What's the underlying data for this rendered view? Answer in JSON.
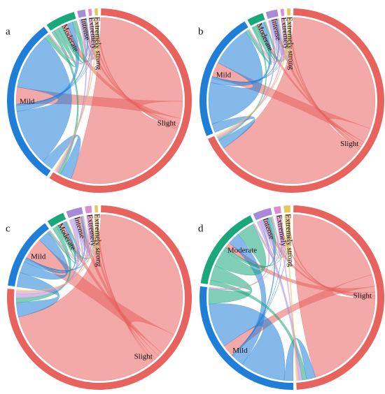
{
  "chart_data": [
    {
      "type": "chord",
      "label": "a",
      "categories": [
        "Slight",
        "Mild",
        "Moderate",
        "Intense",
        "Extremely",
        "Extremely strong"
      ],
      "colors": [
        "#e8625e",
        "#1f7fd8",
        "#1aa77a",
        "#a78bd8",
        "#e08bd0",
        "#e6c85a"
      ],
      "matrix": [
        [
          90,
          12,
          4,
          2,
          1,
          1
        ],
        [
          8,
          40,
          4,
          1,
          0,
          0
        ],
        [
          2,
          3,
          3,
          0,
          0,
          0
        ],
        [
          1,
          1,
          0,
          0,
          0,
          0
        ],
        [
          1,
          0,
          0,
          0,
          0,
          0
        ],
        [
          1,
          0,
          0,
          0,
          0,
          0
        ]
      ]
    },
    {
      "type": "chord",
      "label": "b",
      "categories": [
        "Slight",
        "Mild",
        "Moderate",
        "Intense",
        "Extremely",
        "Extremely strong"
      ],
      "colors": [
        "#e8625e",
        "#1f7fd8",
        "#1aa77a",
        "#a78bd8",
        "#e08bd0",
        "#e6c85a"
      ],
      "matrix": [
        [
          105,
          10,
          2,
          2,
          1,
          1
        ],
        [
          6,
          28,
          3,
          1,
          0,
          0
        ],
        [
          1,
          2,
          1,
          0,
          0,
          0
        ],
        [
          1,
          1,
          0,
          1,
          0,
          0
        ],
        [
          1,
          0,
          0,
          0,
          0,
          0
        ],
        [
          1,
          0,
          0,
          0,
          0,
          0
        ]
      ]
    },
    {
      "type": "chord",
      "label": "c",
      "categories": [
        "Slight",
        "Mild",
        "Moderate",
        "Intense",
        "Extremely",
        "Extremely strong"
      ],
      "colors": [
        "#e8625e",
        "#1f7fd8",
        "#1aa77a",
        "#a78bd8",
        "#e08bd0",
        "#e6c85a"
      ],
      "matrix": [
        [
          115,
          15,
          3,
          3,
          2,
          1
        ],
        [
          10,
          8,
          2,
          1,
          0,
          0
        ],
        [
          3,
          1,
          1,
          0,
          0,
          0
        ],
        [
          3,
          1,
          0,
          1,
          0,
          0
        ],
        [
          2,
          0,
          0,
          0,
          0,
          0
        ],
        [
          1,
          0,
          0,
          0,
          0,
          0
        ]
      ]
    },
    {
      "type": "chord",
      "label": "d",
      "categories": [
        "Slight",
        "Mild",
        "Moderate",
        "Intense",
        "Extremely",
        "Extremely strong"
      ],
      "colors": [
        "#e8625e",
        "#1f7fd8",
        "#1aa77a",
        "#a78bd8",
        "#e08bd0",
        "#e6c85a"
      ],
      "matrix": [
        [
          70,
          8,
          4,
          2,
          1,
          1
        ],
        [
          6,
          30,
          8,
          1,
          0,
          0
        ],
        [
          3,
          10,
          12,
          2,
          0,
          0
        ],
        [
          2,
          1,
          1,
          1,
          0,
          0
        ],
        [
          1,
          0,
          0,
          0,
          1,
          0
        ],
        [
          1,
          0,
          0,
          0,
          0,
          1
        ]
      ]
    }
  ]
}
